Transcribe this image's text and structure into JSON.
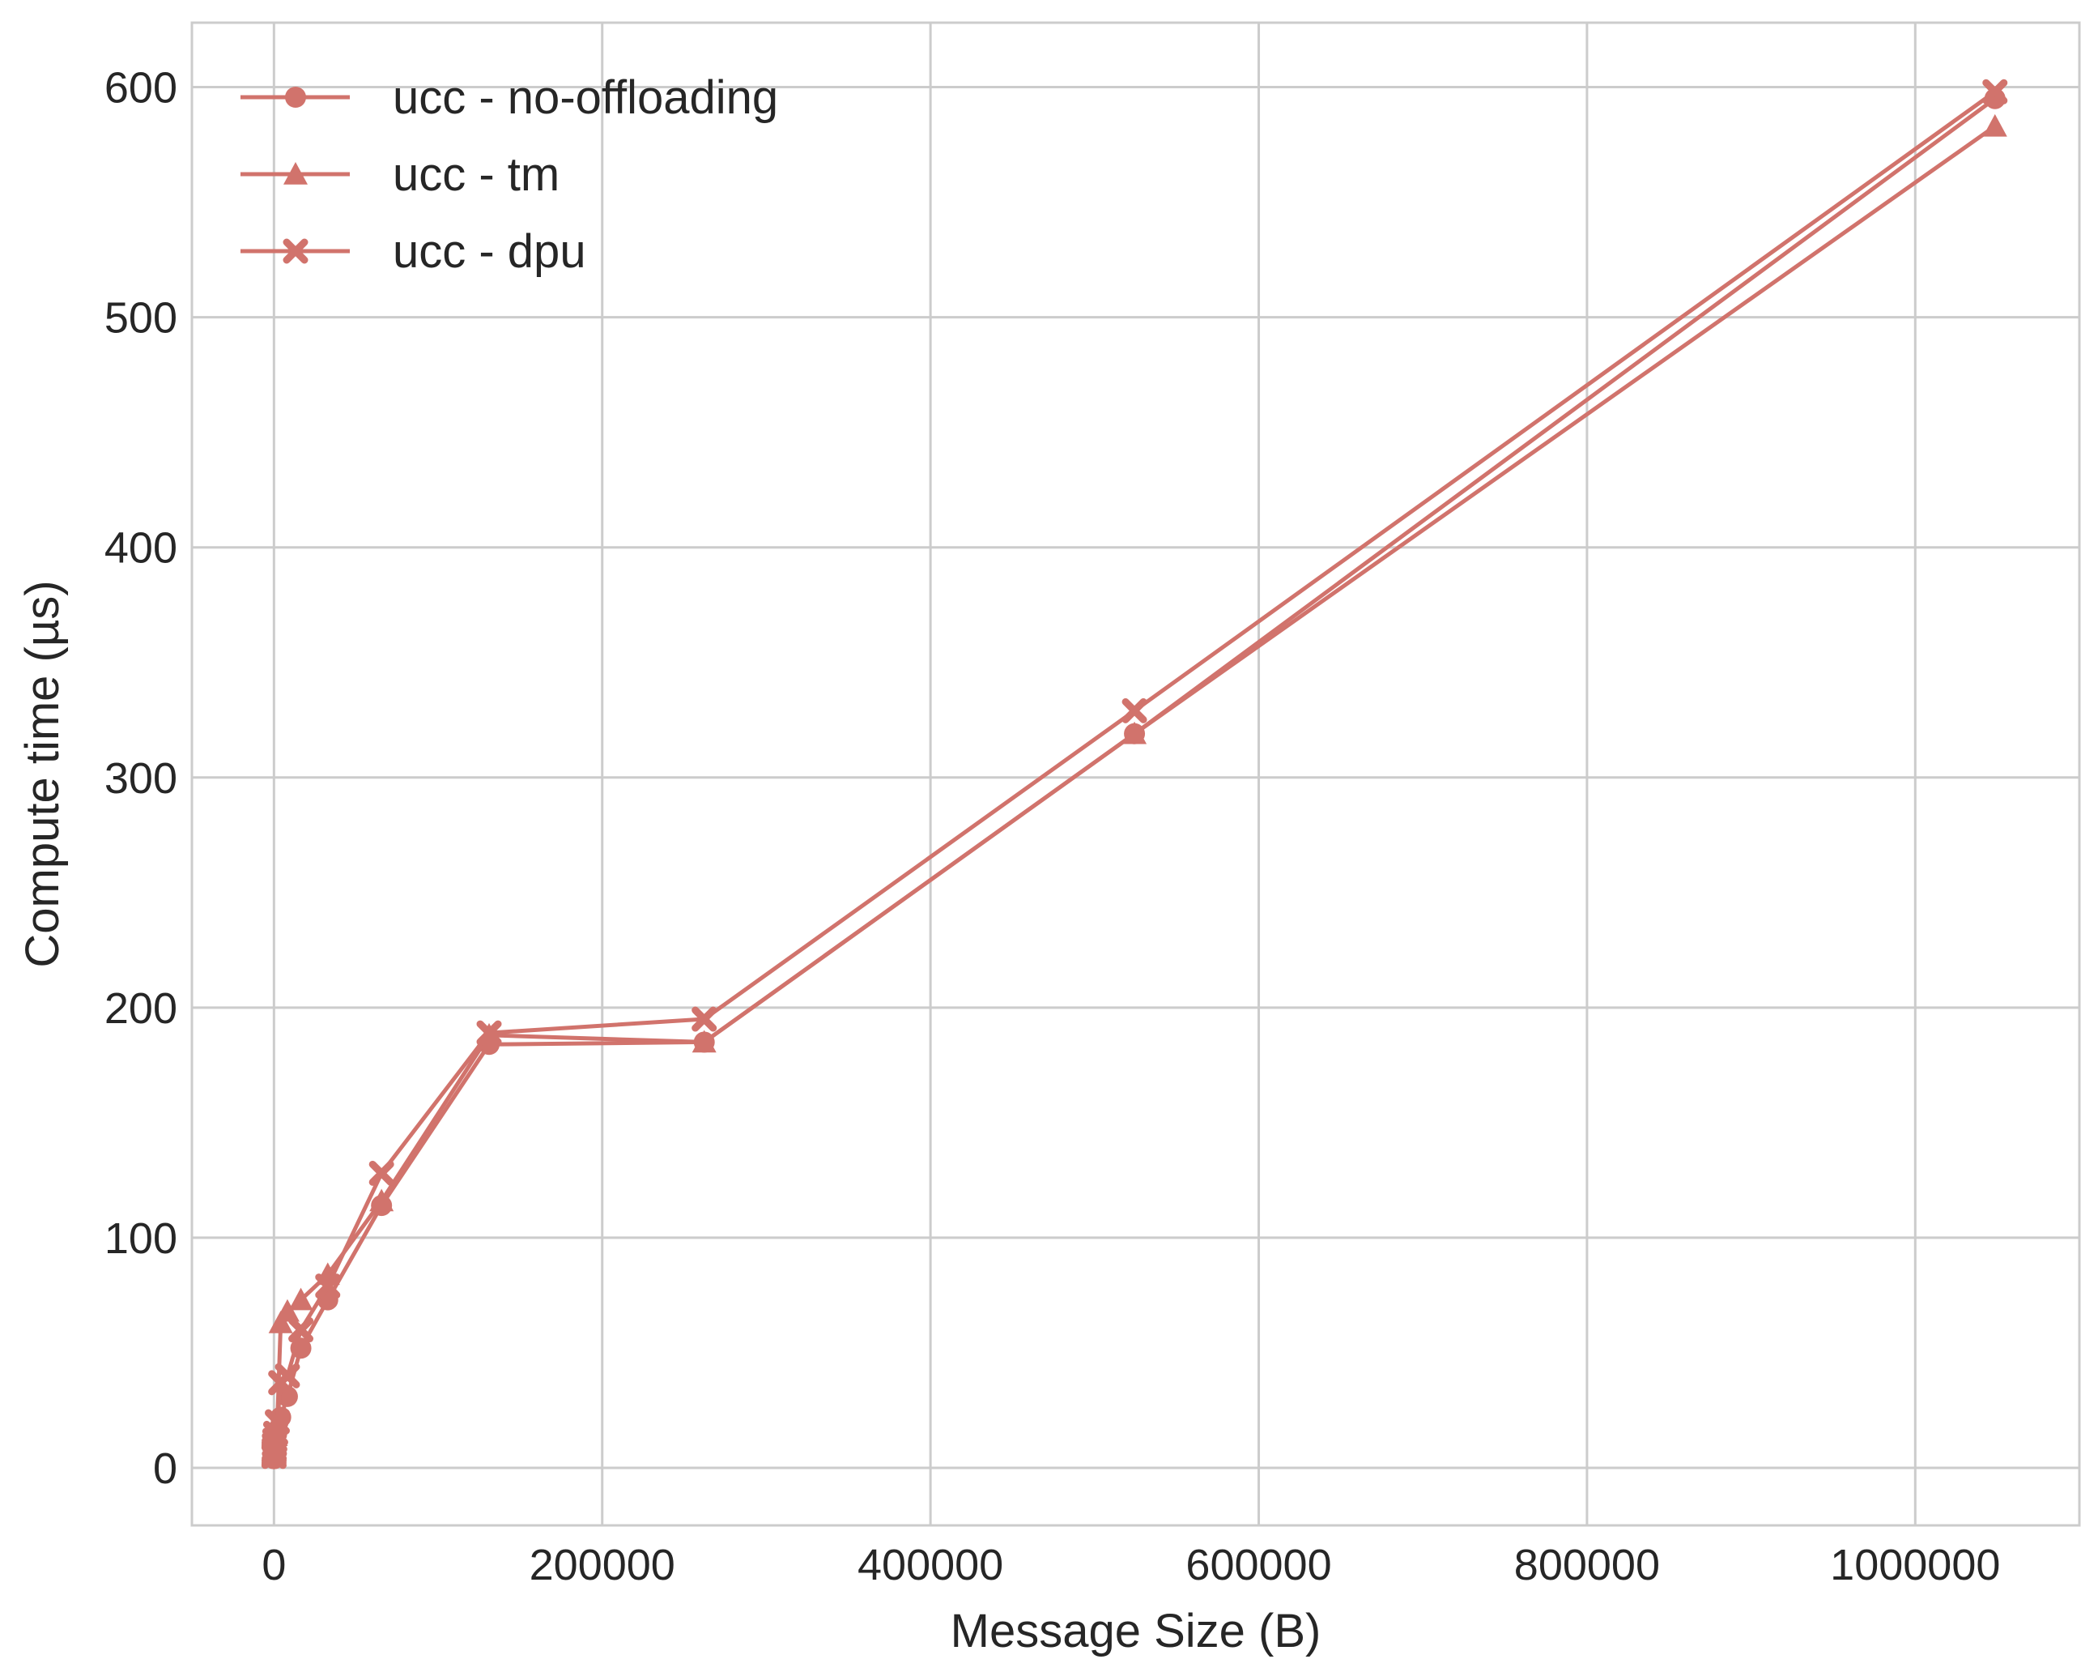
{
  "chart_data": {
    "type": "line",
    "title": "",
    "xlabel": "Message Size (B)",
    "ylabel": "Compute time (µs)",
    "xlim": [
      -50000,
      1100000
    ],
    "ylim": [
      -25,
      628
    ],
    "xticks": [
      0,
      200000,
      400000,
      600000,
      800000,
      1000000
    ],
    "yticks": [
      0,
      100,
      200,
      300,
      400,
      500,
      600
    ],
    "grid": true,
    "legend_position": "top-left",
    "color": "#d1736c",
    "series": [
      {
        "name": "ucc - no-offloading",
        "marker": "circle",
        "x": [
          8,
          16,
          32,
          64,
          128,
          256,
          512,
          1024,
          2048,
          4096,
          8192,
          16384,
          32768,
          65536,
          131072,
          262144,
          524288,
          1048576
        ],
        "y": [
          4,
          4,
          4,
          5,
          6,
          7,
          9,
          12,
          16,
          22,
          31,
          52,
          73,
          114,
          184,
          185,
          319,
          595
        ]
      },
      {
        "name": "ucc - tm",
        "marker": "triangle",
        "x": [
          8,
          16,
          32,
          64,
          128,
          256,
          512,
          1024,
          2048,
          4096,
          8192,
          16384,
          32768,
          65536,
          131072,
          262144,
          524288,
          1048576
        ],
        "y": [
          5,
          5,
          5,
          6,
          7,
          9,
          11,
          14,
          20,
          63,
          68,
          73,
          84,
          116,
          188,
          185,
          319,
          583
        ]
      },
      {
        "name": "ucc - dpu",
        "marker": "x",
        "x": [
          8,
          16,
          32,
          64,
          128,
          256,
          512,
          1024,
          2048,
          4096,
          8192,
          16384,
          32768,
          65536,
          131072,
          262144,
          524288,
          1048576
        ],
        "y": [
          5,
          5,
          6,
          7,
          8,
          10,
          12,
          15,
          20,
          37,
          40,
          60,
          79,
          128,
          189,
          195,
          329,
          598
        ]
      }
    ]
  }
}
